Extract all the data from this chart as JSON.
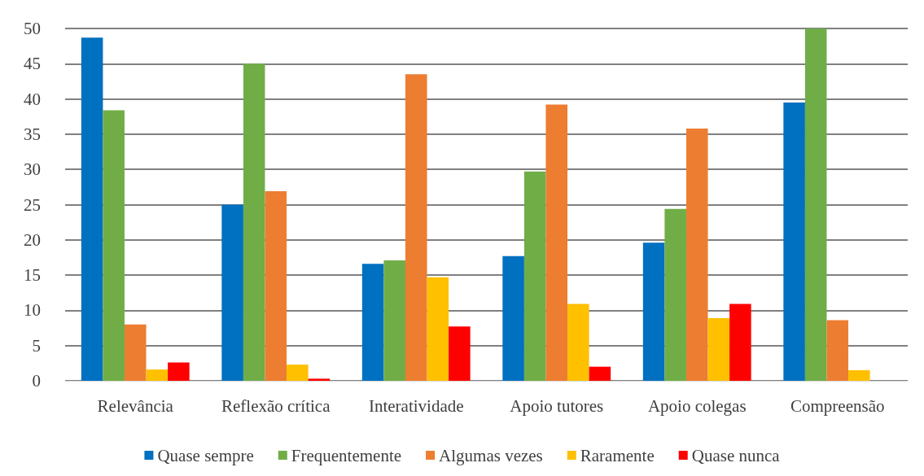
{
  "chart_data": {
    "type": "bar",
    "categories": [
      "Relevância",
      "Reflexão crítica",
      "Interatividade",
      "Apoio tutores",
      "Apoio colegas",
      "Compreensão"
    ],
    "series": [
      {
        "name": "Quase sempre",
        "color": "#0070c0",
        "values": [
          48.7,
          25,
          16.6,
          17.7,
          19.6,
          39.5
        ]
      },
      {
        "name": "Frequentemente",
        "color": "#70ad47",
        "values": [
          38.4,
          45,
          17.1,
          29.7,
          24.4,
          50
        ]
      },
      {
        "name": "Algumas vezes",
        "color": "#ed7d31",
        "values": [
          8,
          26.9,
          43.5,
          39.2,
          35.8,
          8.6
        ]
      },
      {
        "name": "Raramente",
        "color": "#ffc000",
        "values": [
          1.6,
          2.3,
          14.7,
          10.9,
          8.9,
          1.5
        ]
      },
      {
        "name": "Quase nunca",
        "color": "#ff0000",
        "values": [
          2.6,
          0.3,
          7.7,
          2,
          10.9,
          0
        ]
      }
    ],
    "ylim": [
      0,
      50
    ],
    "yticks": [
      0,
      5,
      10,
      15,
      20,
      25,
      30,
      35,
      40,
      45,
      50
    ],
    "grid": "y",
    "legend": "bottom"
  }
}
